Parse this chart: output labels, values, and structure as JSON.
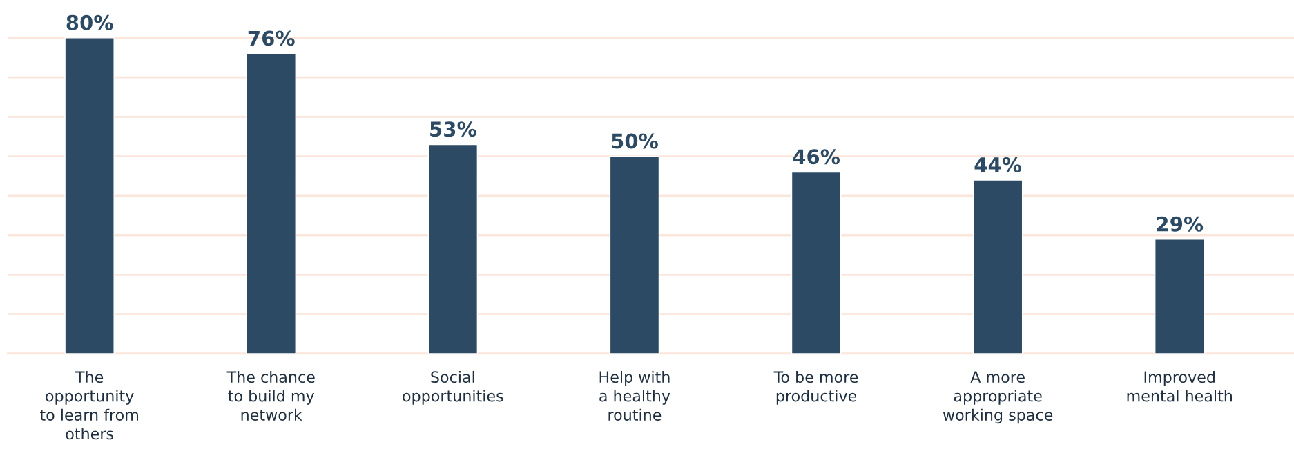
{
  "chart_data": {
    "type": "bar",
    "categories": [
      "The\nopportunity\nto learn from\nothers",
      "The chance\nto build my\nnetwork",
      "Social\nopportunities",
      "Help with\na healthy\nroutine",
      "To be more\nproductive",
      "A more\nappropriate\nworking space",
      "Improved\nmental health"
    ],
    "values": [
      80,
      76,
      53,
      50,
      46,
      44,
      29
    ],
    "value_labels": [
      "80%",
      "76%",
      "53%",
      "50%",
      "46%",
      "44%",
      "29%"
    ],
    "color": "#2c4a63",
    "yticks": [
      {
        "value": 0,
        "label": null
      },
      {
        "value": 10,
        "label": null
      },
      {
        "value": 20,
        "label": null
      },
      {
        "value": 30,
        "label": null
      },
      {
        "value": 40,
        "label": null
      },
      {
        "value": 50,
        "label": null
      },
      {
        "value": 60,
        "label": null
      },
      {
        "value": 70,
        "label": null
      },
      {
        "value": 80,
        "label": null
      }
    ],
    "grid": "y",
    "legend": false
  }
}
